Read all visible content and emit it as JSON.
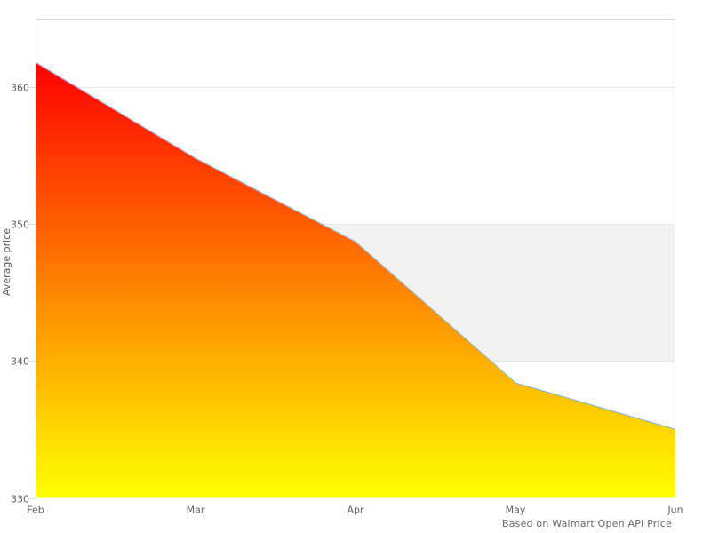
{
  "chart_data": {
    "type": "area",
    "title": "",
    "x": [
      "Feb",
      "Mar",
      "Apr",
      "May",
      "Jun"
    ],
    "values": [
      361.8,
      354.8,
      348.7,
      338.4,
      335.0
    ],
    "xlabel": "",
    "ylabel": "Average price",
    "ylim": [
      330,
      365
    ],
    "yticks": [
      330,
      340,
      350,
      360
    ],
    "grid": "horizontal-only",
    "legend": "none",
    "plot_band": {
      "from": 340,
      "to": 350,
      "color": "#f2f2f2"
    },
    "caption": "Based on Walmart Open API Price",
    "colors": {
      "line": "#7cb5ec",
      "area_gradient_top": "#ff0000",
      "area_gradient_bottom": "#ffff00",
      "band": "#f2f2f2",
      "grid": "#e6e6e6",
      "border": "#d8d8d8",
      "tick_text": "#606060",
      "axis_title_text": "#555555",
      "caption_text": "#666666",
      "background": "#ffffff"
    }
  }
}
